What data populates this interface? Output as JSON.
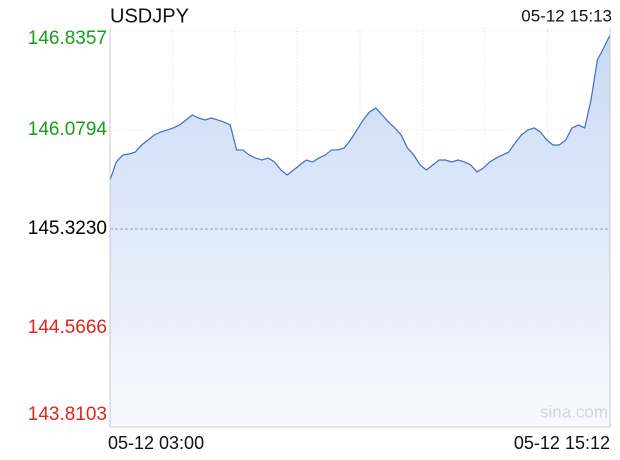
{
  "chart_data": {
    "type": "line",
    "title": "USDJPY",
    "timestamp": "05-12 15:13",
    "watermark": "sina.com",
    "x_labels": [
      "05-12 03:00",
      "05-12 15:12"
    ],
    "color": "#3c6fc6",
    "fill": "area",
    "baseline": 145.323,
    "tick_colors": {
      "up": "#1b9e1b",
      "base": "#000000",
      "down": "#e3231c"
    },
    "ylim": [
      143.8103,
      146.8357
    ],
    "yticks": [
      146.8357,
      146.0794,
      {
        "value": 145.323,
        "label": "145.3230"
      },
      144.5666,
      143.8103
    ],
    "grid": true,
    "values": [
      145.697,
      145.835,
      145.888,
      145.896,
      145.911,
      145.965,
      146.003,
      146.041,
      146.064,
      146.079,
      146.095,
      146.118,
      146.156,
      146.194,
      146.171,
      146.156,
      146.171,
      146.156,
      146.14,
      146.118,
      145.927,
      145.927,
      145.888,
      145.865,
      145.85,
      145.865,
      145.835,
      145.774,
      145.736,
      145.774,
      145.812,
      145.85,
      145.835,
      145.865,
      145.888,
      145.927,
      145.927,
      145.942,
      146.003,
      146.079,
      146.156,
      146.217,
      146.247,
      146.194,
      146.14,
      146.095,
      146.041,
      145.942,
      145.888,
      145.812,
      145.774,
      145.812,
      145.85,
      145.85,
      145.835,
      145.85,
      145.835,
      145.812,
      145.759,
      145.789,
      145.835,
      145.865,
      145.888,
      145.911,
      145.98,
      146.041,
      146.079,
      146.095,
      146.064,
      146.003,
      145.965,
      145.965,
      146.003,
      146.095,
      146.118,
      146.095,
      146.309,
      146.614,
      146.706,
      146.805
    ]
  }
}
